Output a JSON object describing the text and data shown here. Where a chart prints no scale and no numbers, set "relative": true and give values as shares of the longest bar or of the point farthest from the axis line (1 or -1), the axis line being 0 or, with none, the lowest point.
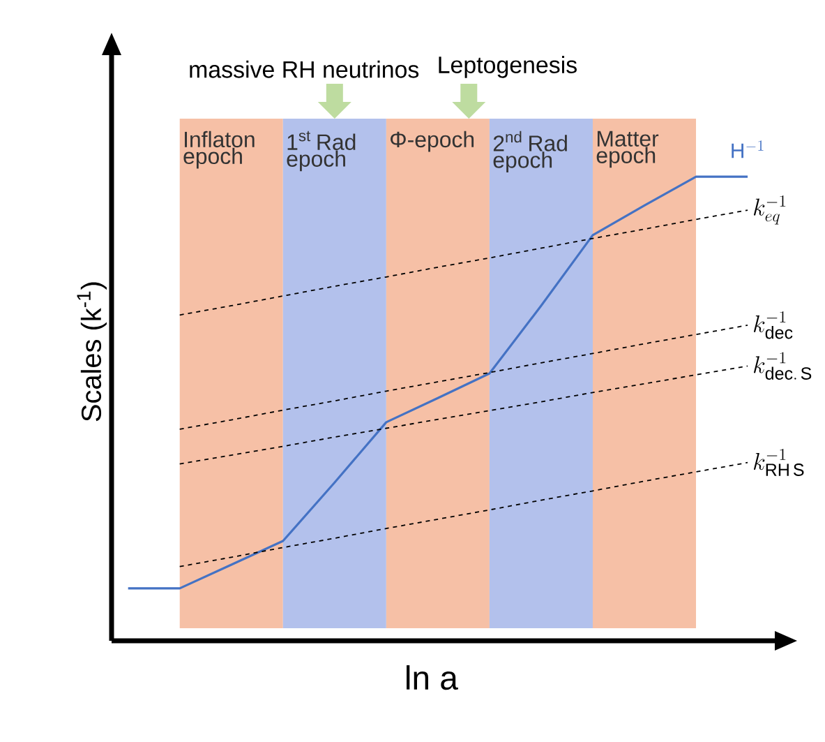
{
  "chart_data": {
    "type": "line",
    "relative": true,
    "xlabel": "ln a",
    "ylabel": "Scales (k$^{-1}$)",
    "categories": [
      null,
      null,
      null,
      null,
      null,
      null,
      null,
      null,
      null,
      null,
      null,
      null,
      null
    ],
    "series": [
      {
        "name": "\\mathrm{H}^{-1}",
        "color": "#4472c4",
        "values": [
          0.113,
          0.113,
          0.164,
          0.215,
          0.341,
          0.471,
          0.523,
          0.576,
          0.722,
          0.874,
          0.938,
          1.0,
          1.0
        ]
      },
      {
        "name": "k_{eq}^{-1}",
        "color": "#000000",
        "line_style": "dashed",
        "values": [
          null,
          0.702,
          0.722,
          0.743,
          0.764,
          0.784,
          0.805,
          0.825,
          0.846,
          0.867,
          0.887,
          0.908,
          0.928
        ]
      },
      {
        "name": "k_{\\mathrm{dec}}^{-1}",
        "color": "#000000",
        "line_style": "dashed",
        "values": [
          null,
          0.456,
          0.476,
          0.497,
          0.517,
          0.538,
          0.558,
          0.578,
          0.599,
          0.619,
          0.64,
          0.66,
          0.68
        ]
      },
      {
        "name": "k_{\\mathrm{dec.\\,S}}^{-1}",
        "color": "#000000",
        "line_style": "dashed",
        "values": [
          null,
          0.381,
          0.4,
          0.419,
          0.439,
          0.458,
          0.477,
          0.496,
          0.515,
          0.535,
          0.554,
          0.573,
          0.592
        ]
      },
      {
        "name": "k_{\\mathrm{RH\\,S}}^{-1}",
        "color": "#000000",
        "line_style": "dashed",
        "values": [
          null,
          0.16,
          0.18,
          0.201,
          0.221,
          0.242,
          0.262,
          0.282,
          0.303,
          0.323,
          0.344,
          0.364,
          0.384
        ]
      }
    ],
    "annotations": [
      "Inflaton epoch",
      "1$^{st}$ Rad epoch",
      "Φ-epoch",
      "2$^{nd}$ Rad epoch",
      "Matter epoch",
      "massive RH neutrinos",
      "Leptogenesis"
    ]
  }
}
